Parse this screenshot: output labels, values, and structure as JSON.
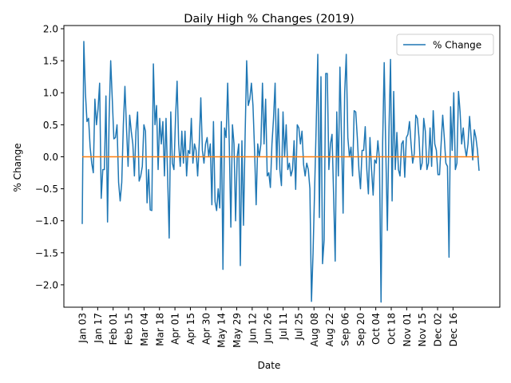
{
  "chart_data": {
    "type": "line",
    "title": "Daily High % Changes (2019)",
    "xlabel": "Date",
    "ylabel": "% Change",
    "ylim": [
      -2.35,
      2.05
    ],
    "yticks": [
      2.0,
      1.5,
      1.0,
      0.5,
      0.0,
      -0.5,
      -1.0,
      -1.5,
      -2.0
    ],
    "ytick_labels": [
      "2.0",
      "1.5",
      "1.0",
      "0.5",
      "0.0",
      "−0.5",
      "−1.0",
      "−1.5",
      "−2.0"
    ],
    "xtick_labels": [
      "Jan 03",
      "Jan 17",
      "Feb 01",
      "Feb 15",
      "Mar 04",
      "Mar 18",
      "Apr 01",
      "Apr 15",
      "Apr 30",
      "May 14",
      "May 29",
      "Jun 12",
      "Jun 26",
      "Jul 11",
      "Jul 25",
      "Aug 08",
      "Aug 22",
      "Sep 06",
      "Sep 20",
      "Oct 04",
      "Oct 18",
      "Nov 01",
      "Nov 15",
      "Dec 02",
      "Dec 16"
    ],
    "grid": false,
    "legend_position": "top-right",
    "colors": {
      "series": "#1f77b4",
      "zero_line": "#ff7f0e"
    },
    "series": [
      {
        "name": "% Change",
        "values": [
          -1.05,
          1.8,
          1.0,
          0.55,
          0.6,
          0.15,
          -0.1,
          -0.25,
          0.9,
          0.5,
          0.75,
          1.15,
          -0.65,
          -0.2,
          -0.2,
          0.95,
          -1.02,
          0.6,
          1.5,
          0.9,
          0.28,
          0.3,
          0.5,
          -0.4,
          -0.69,
          -0.4,
          0.5,
          1.1,
          0.45,
          -0.15,
          0.65,
          0.4,
          0.2,
          -0.3,
          0.4,
          0.7,
          -0.38,
          -0.3,
          -0.15,
          0.5,
          0.4,
          -0.72,
          -0.2,
          -0.83,
          -0.84,
          1.45,
          0.5,
          0.8,
          -0.2,
          0.6,
          0.2,
          0.55,
          -0.3,
          0.6,
          -0.3,
          -1.27,
          0.7,
          -0.1,
          -0.2,
          0.6,
          1.18,
          0.2,
          -0.15,
          0.4,
          -0.1,
          0.4,
          -0.3,
          0.1,
          0.05,
          0.6,
          -0.1,
          0.2,
          0.1,
          -0.3,
          0.2,
          0.92,
          0.1,
          -0.1,
          0.2,
          0.3,
          0.0,
          0.2,
          -0.75,
          0.55,
          -0.7,
          -0.84,
          -0.5,
          -0.8,
          0.55,
          -1.76,
          0.45,
          0.3,
          1.15,
          0.2,
          -1.1,
          0.5,
          0.2,
          -1.0,
          0.0,
          0.2,
          -1.7,
          0.25,
          -1.07,
          0.3,
          1.5,
          0.8,
          0.9,
          1.15,
          0.8,
          0.1,
          -0.75,
          0.2,
          0.0,
          0.2,
          1.15,
          0.2,
          0.9,
          -0.3,
          -0.25,
          -0.48,
          0.2,
          0.6,
          1.15,
          -0.2,
          0.75,
          -0.2,
          -0.45,
          0.7,
          0.0,
          0.5,
          -0.2,
          -0.1,
          -0.3,
          -0.2,
          0.25,
          -0.51,
          0.5,
          0.45,
          0.2,
          0.4,
          -0.12,
          -0.3,
          -0.1,
          -0.2,
          -0.5,
          -2.26,
          -1.5,
          -0.5,
          0.5,
          1.6,
          -0.95,
          1.25,
          -1.67,
          -1.3,
          1.3,
          1.3,
          -0.2,
          0.2,
          0.35,
          -0.6,
          -1.63,
          0.7,
          -0.3,
          1.4,
          0.3,
          -0.88,
          1.0,
          1.6,
          0.3,
          0.0,
          0.15,
          -0.3,
          0.72,
          0.7,
          0.3,
          -0.2,
          -0.5,
          0.1,
          0.1,
          0.47,
          -0.2,
          -0.58,
          0.3,
          -0.2,
          -0.6,
          -0.05,
          -0.1,
          0.25,
          -0.05,
          -2.27,
          0.2,
          1.47,
          0.1,
          -1.15,
          0.4,
          1.52,
          -0.69,
          1.02,
          -0.2,
          0.38,
          -0.2,
          -0.3,
          0.2,
          0.25,
          -0.32,
          0.3,
          0.35,
          0.55,
          0.2,
          -0.1,
          0.05,
          0.65,
          0.6,
          0.3,
          -0.2,
          -0.1,
          0.6,
          0.4,
          -0.2,
          -0.1,
          0.45,
          -0.15,
          0.72,
          0.2,
          0.1,
          -0.28,
          -0.28,
          0.2,
          0.65,
          0.3,
          -0.1,
          -0.15,
          -1.57,
          0.78,
          0.1,
          1.0,
          -0.2,
          -0.1,
          1.02,
          0.7,
          0.2,
          0.45,
          0.15,
          0.0,
          0.2,
          0.63,
          0.3,
          -0.05,
          0.42,
          0.3,
          0.1,
          -0.22
        ]
      },
      {
        "name": "",
        "values": [
          0.0,
          0.0
        ]
      }
    ]
  }
}
